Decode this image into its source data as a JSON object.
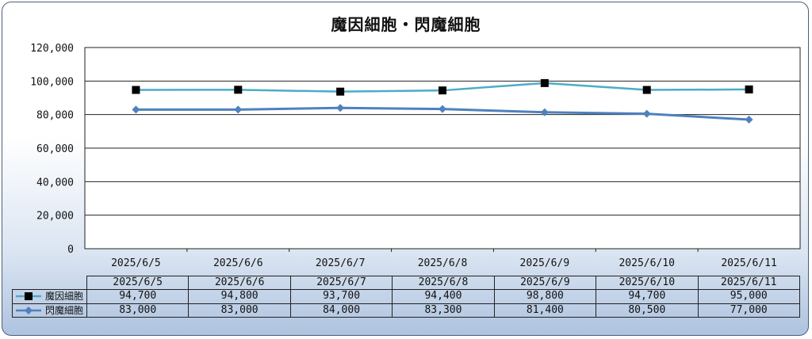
{
  "chart_data": {
    "type": "line",
    "title": "魔因細胞・閃魔細胞",
    "categories": [
      "2025/6/5",
      "2025/6/6",
      "2025/6/7",
      "2025/6/8",
      "2025/6/9",
      "2025/6/10",
      "2025/6/11"
    ],
    "series": [
      {
        "name": "魔因細胞",
        "color": "#4bacc6",
        "marker": "square",
        "marker_color": "#000000",
        "values": [
          94700,
          94800,
          93700,
          94400,
          98800,
          94700,
          95000
        ],
        "labels": [
          "94,700",
          "94,800",
          "93,700",
          "94,400",
          "98,800",
          "94,700",
          "95,000"
        ]
      },
      {
        "name": "閃魔細胞",
        "color": "#4f81bd",
        "marker": "diamond",
        "marker_color": "#4f81bd",
        "values": [
          83000,
          83000,
          84000,
          83300,
          81400,
          80500,
          77000
        ],
        "labels": [
          "83,000",
          "83,000",
          "84,000",
          "83,300",
          "81,400",
          "80,500",
          "77,000"
        ]
      }
    ],
    "ylim": [
      0,
      120000
    ],
    "yticks": [
      "0",
      "20,000",
      "40,000",
      "60,000",
      "80,000",
      "100,000",
      "120,000"
    ],
    "grid": true,
    "legend": "data-table"
  }
}
